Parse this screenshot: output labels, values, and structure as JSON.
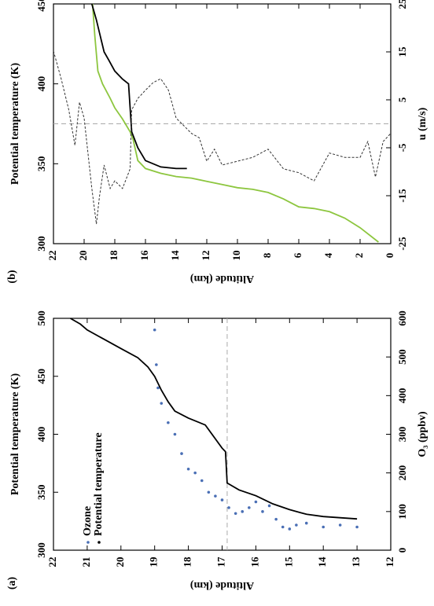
{
  "chart_data": [
    {
      "type": "line",
      "panel_label": "(b)",
      "x_label": "Altitude (km)",
      "y_label": "Potential temperature (K)",
      "y2_label": "u (m/s)",
      "xlim": [
        22,
        0
      ],
      "xticks": [
        22,
        20,
        18,
        16,
        14,
        12,
        10,
        8,
        6,
        4,
        2,
        0
      ],
      "ylim": [
        300,
        450
      ],
      "yticks": [
        300,
        350,
        400,
        450
      ],
      "y2lim": [
        -25,
        25
      ],
      "y2ticks": [
        -25,
        -15,
        -5,
        5,
        15,
        25
      ],
      "reference_lines": [
        {
          "axis": "y2",
          "value": 0
        }
      ],
      "series": [
        {
          "color": "#8dc63f",
          "x": [
            0.8,
            2,
            3,
            4,
            5,
            6,
            7,
            8,
            9,
            10,
            11,
            12,
            13,
            14,
            15,
            16,
            16.5,
            16.8,
            17,
            17.5,
            18,
            18.3,
            18.8,
            19.1,
            19.3,
            19.45
          ],
          "values": [
            301,
            310,
            316,
            320,
            322,
            323,
            328,
            332,
            334,
            335,
            337,
            339,
            341,
            342,
            344,
            347,
            352,
            365,
            370,
            378,
            385,
            391,
            400,
            408,
            430,
            450
          ]
        },
        {
          "color": "#000000",
          "x": [
            13.3,
            14,
            15,
            16,
            16.5,
            16.9,
            17.1,
            17.5,
            18,
            18.4,
            18.7,
            19,
            19.2,
            19.5
          ],
          "values": [
            347,
            347,
            348,
            352,
            360,
            370,
            400,
            403,
            408,
            415,
            420,
            432,
            440,
            450
          ]
        },
        {
          "color": "#333333",
          "dash": true,
          "axis": "y2",
          "x": [
            22,
            21.5,
            21,
            20.6,
            20.3,
            20,
            19.5,
            19.2,
            19,
            18.7,
            18.3,
            18,
            17.5,
            17,
            16.9,
            16.5,
            16,
            15.5,
            15,
            14.5,
            14,
            13.5,
            13,
            12.5,
            12,
            11.5,
            11,
            10,
            9,
            8,
            7,
            6,
            5,
            4,
            3,
            2,
            1.5,
            1,
            0.5,
            0
          ],
          "values": [
            15.2,
            9.4,
            2.9,
            -4.5,
            4.5,
            1.2,
            -13.5,
            -20.9,
            -15.2,
            -8.6,
            -13.5,
            -11.9,
            -13.5,
            -9.4,
            2.9,
            5.3,
            7,
            8.6,
            9.4,
            7,
            1.2,
            -0.4,
            -2,
            -2.9,
            -7.8,
            -5.3,
            -8.6,
            -7.8,
            -7,
            -5.3,
            -9.4,
            -10.2,
            -11.9,
            -6.1,
            -7,
            -7,
            -3.7,
            -11.1,
            -3.7,
            -2
          ]
        }
      ]
    },
    {
      "type": "line",
      "panel_label": "(a)",
      "x_label": "Altitude (km)",
      "y_label": "Potential temperature (K)",
      "y2_label": "O₃ (ppbv)",
      "xlim": [
        22,
        12
      ],
      "xticks": [
        22,
        21,
        20,
        19,
        18,
        17,
        16,
        15,
        14,
        13,
        12
      ],
      "ylim": [
        300,
        500
      ],
      "yticks": [
        300,
        350,
        400,
        450,
        500
      ],
      "y2lim": [
        0,
        600
      ],
      "y2ticks": [
        0,
        100,
        200,
        300,
        400,
        500,
        600
      ],
      "reference_lines": [
        {
          "axis": "x",
          "value": 16.85
        }
      ],
      "legend": "lower-left",
      "series": [
        {
          "name": "Ozone",
          "color": "#4a6fb5",
          "marker": "dots",
          "axis": "y2",
          "x": [
            19,
            18.95,
            18.9,
            18.8,
            18.6,
            18.4,
            18.2,
            18,
            17.8,
            17.6,
            17.4,
            17.2,
            17,
            16.8,
            16.6,
            16.4,
            16.2,
            16,
            15.8,
            15.6,
            15.4,
            15.2,
            15,
            14.8,
            14.5,
            14,
            13.5,
            13
          ],
          "values": [
            570,
            480,
            420,
            380,
            330,
            300,
            250,
            210,
            200,
            180,
            150,
            140,
            130,
            110,
            95,
            100,
            110,
            125,
            100,
            115,
            80,
            60,
            55,
            65,
            70,
            60,
            65,
            60
          ]
        },
        {
          "name": "Potential temperature",
          "color": "#000000",
          "x": [
            13,
            13.5,
            14,
            14.5,
            15,
            15.5,
            16,
            16.5,
            16.85,
            16.9,
            17,
            17.5,
            18,
            18.4,
            18.6,
            18.8,
            19,
            19.2,
            19.5,
            20,
            20.5,
            21,
            21.2,
            21.5
          ],
          "values": [
            327,
            328,
            329,
            331,
            335,
            340,
            347,
            352,
            358,
            385,
            388,
            408,
            414,
            420,
            428,
            438,
            450,
            458,
            466,
            474,
            482,
            490,
            495,
            500
          ]
        }
      ]
    }
  ]
}
